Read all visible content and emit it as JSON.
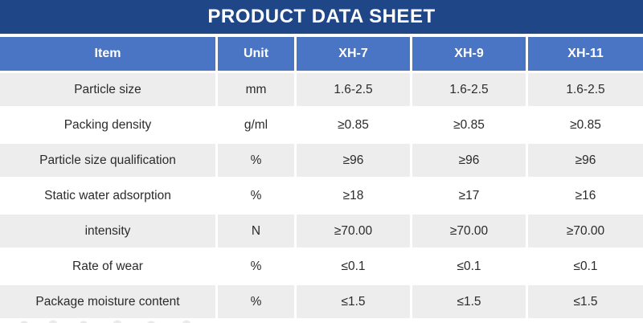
{
  "banner": {
    "title": "PRODUCT DATA SHEET"
  },
  "table": {
    "columns": [
      "Item",
      "Unit",
      "XH-7",
      "XH-9",
      "XH-11"
    ],
    "rows": [
      [
        "Particle size",
        "mm",
        "1.6-2.5",
        "1.6-2.5",
        "1.6-2.5"
      ],
      [
        "Packing density",
        "g/ml",
        "≥0.85",
        "≥0.85",
        "≥0.85"
      ],
      [
        "Particle size qualification",
        "%",
        "≥96",
        "≥96",
        "≥96"
      ],
      [
        "Static water adsorption",
        "%",
        "≥18",
        "≥17",
        "≥16"
      ],
      [
        "intensity",
        "N",
        "≥70.00",
        "≥70.00",
        "≥70.00"
      ],
      [
        "Rate of wear",
        "%",
        "≤0.1",
        "≤0.1",
        "≤0.1"
      ],
      [
        "Package moisture content",
        "%",
        "≤1.5",
        "≤1.5",
        "≤1.5"
      ]
    ]
  },
  "colors": {
    "banner_bg": "#1F4788",
    "banner_fg": "#FFFFFF",
    "header_bg": "#4A74C4",
    "header_fg": "#FFFFFF",
    "row_shade_bg": "#EDEDED",
    "row_plain_bg": "#FFFFFF",
    "cell_fg": "#2B2B2B"
  }
}
